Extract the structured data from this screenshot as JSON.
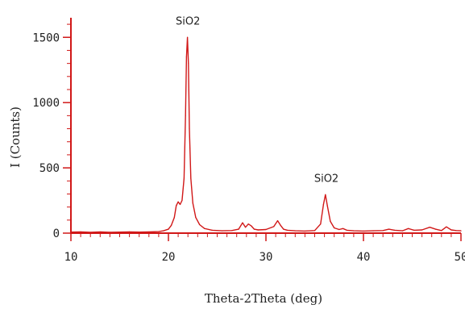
{
  "chart_data": {
    "type": "line",
    "title": "",
    "xlabel": "Theta-2Theta (deg)",
    "ylabel": "I (Counts)",
    "xlim": [
      10,
      50
    ],
    "ylim": [
      0,
      1650
    ],
    "x_ticks": [
      "10",
      "20",
      "30",
      "40",
      "50"
    ],
    "y_ticks": [
      "0",
      "500",
      "1000",
      "1500"
    ],
    "grid": false,
    "legend": "none",
    "colors": {
      "line": "#d11818",
      "axis": "#d11818",
      "text": "#222222"
    },
    "series": [
      {
        "x": [
          10,
          11,
          12,
          13,
          14,
          15,
          16,
          17,
          18,
          19,
          19.5,
          20,
          20.3,
          20.6,
          20.8,
          21.0,
          21.2,
          21.4,
          21.6,
          21.75,
          21.85,
          21.95,
          22.05,
          22.15,
          22.3,
          22.5,
          22.8,
          23.2,
          23.7,
          24.5,
          25.5,
          26.5,
          27.2,
          27.6,
          27.9,
          28.2,
          28.5,
          28.8,
          29.2,
          30,
          30.8,
          31.2,
          31.5,
          31.8,
          32.2,
          33,
          34,
          35,
          35.6,
          35.9,
          36.1,
          36.3,
          36.6,
          37,
          37.5,
          37.9,
          38.3,
          39,
          40,
          41,
          42,
          42.6,
          43.2,
          44,
          44.6,
          45.2,
          46,
          46.8,
          47.4,
          48,
          48.5,
          49,
          49.5,
          50
        ],
        "y": [
          8,
          10,
          6,
          9,
          7,
          8,
          10,
          8,
          9,
          12,
          18,
          30,
          60,
          120,
          210,
          240,
          220,
          250,
          420,
          900,
          1350,
          1500,
          1300,
          800,
          420,
          230,
          120,
          65,
          35,
          22,
          18,
          20,
          30,
          80,
          45,
          70,
          55,
          30,
          25,
          28,
          50,
          95,
          60,
          30,
          22,
          18,
          16,
          20,
          70,
          220,
          295,
          210,
          90,
          40,
          28,
          35,
          22,
          18,
          16,
          18,
          20,
          30,
          22,
          18,
          35,
          22,
          25,
          45,
          30,
          20,
          48,
          25,
          20,
          18
        ]
      }
    ],
    "annotations": [
      {
        "text": "SiO2",
        "x": 22.0,
        "y": 1500
      },
      {
        "text": "SiO2",
        "x": 36.2,
        "y": 295
      }
    ]
  }
}
